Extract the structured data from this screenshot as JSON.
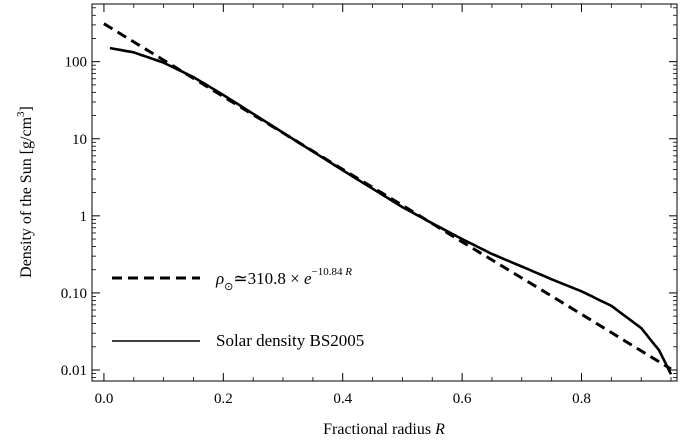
{
  "chart_data": {
    "type": "line",
    "x_axis": {
      "label": "Fractional radius",
      "label_var": "R",
      "range": [
        -0.02,
        0.96
      ],
      "ticks": [
        {
          "value": 0.0,
          "label": "0.0"
        },
        {
          "value": 0.2,
          "label": "0.2"
        },
        {
          "value": 0.4,
          "label": "0.4"
        },
        {
          "value": 0.6,
          "label": "0.6"
        },
        {
          "value": 0.8,
          "label": "0.8"
        }
      ]
    },
    "y_axis": {
      "label": "Density of the Sun  [g/cm",
      "label_sup": "3",
      "label_end": "]",
      "scale": "log",
      "range": [
        0.0072,
        560
      ],
      "ticks": [
        {
          "value": 0.01,
          "label": "0.01"
        },
        {
          "value": 0.1,
          "label": "0.10"
        },
        {
          "value": 1,
          "label": "1"
        },
        {
          "value": 10,
          "label": "10"
        },
        {
          "value": 100,
          "label": "100"
        }
      ]
    },
    "series": [
      {
        "style": "dashed",
        "formula": {
          "a": 310.8,
          "b": 10.84
        },
        "x": [
          0.0,
          0.1,
          0.2,
          0.3,
          0.4,
          0.5,
          0.6,
          0.7,
          0.8,
          0.9,
          0.95
        ],
        "y": [
          310.8,
          104.8,
          35.3,
          11.9,
          4.0,
          1.37,
          0.46,
          0.156,
          0.053,
          0.0177,
          0.0103
        ]
      },
      {
        "style": "solid",
        "x": [
          0.01,
          0.05,
          0.1,
          0.15,
          0.2,
          0.3,
          0.4,
          0.5,
          0.55,
          0.6,
          0.65,
          0.7,
          0.75,
          0.8,
          0.85,
          0.9,
          0.93,
          0.95
        ],
        "y": [
          150,
          132,
          97,
          63,
          37,
          12,
          3.9,
          1.3,
          0.8,
          0.5,
          0.32,
          0.22,
          0.15,
          0.105,
          0.068,
          0.035,
          0.018,
          0.0088
        ]
      }
    ],
    "legend": [
      {
        "style": "dashed",
        "prefix": "ρ",
        "sub": "⊙",
        "mid": "≃310.8 × ",
        "base": "e",
        "exp": "−10.84 ",
        "exp_var": "R"
      },
      {
        "style": "solid",
        "text": "Solar density BS2005"
      }
    ],
    "legend_position": "bottom-left"
  }
}
